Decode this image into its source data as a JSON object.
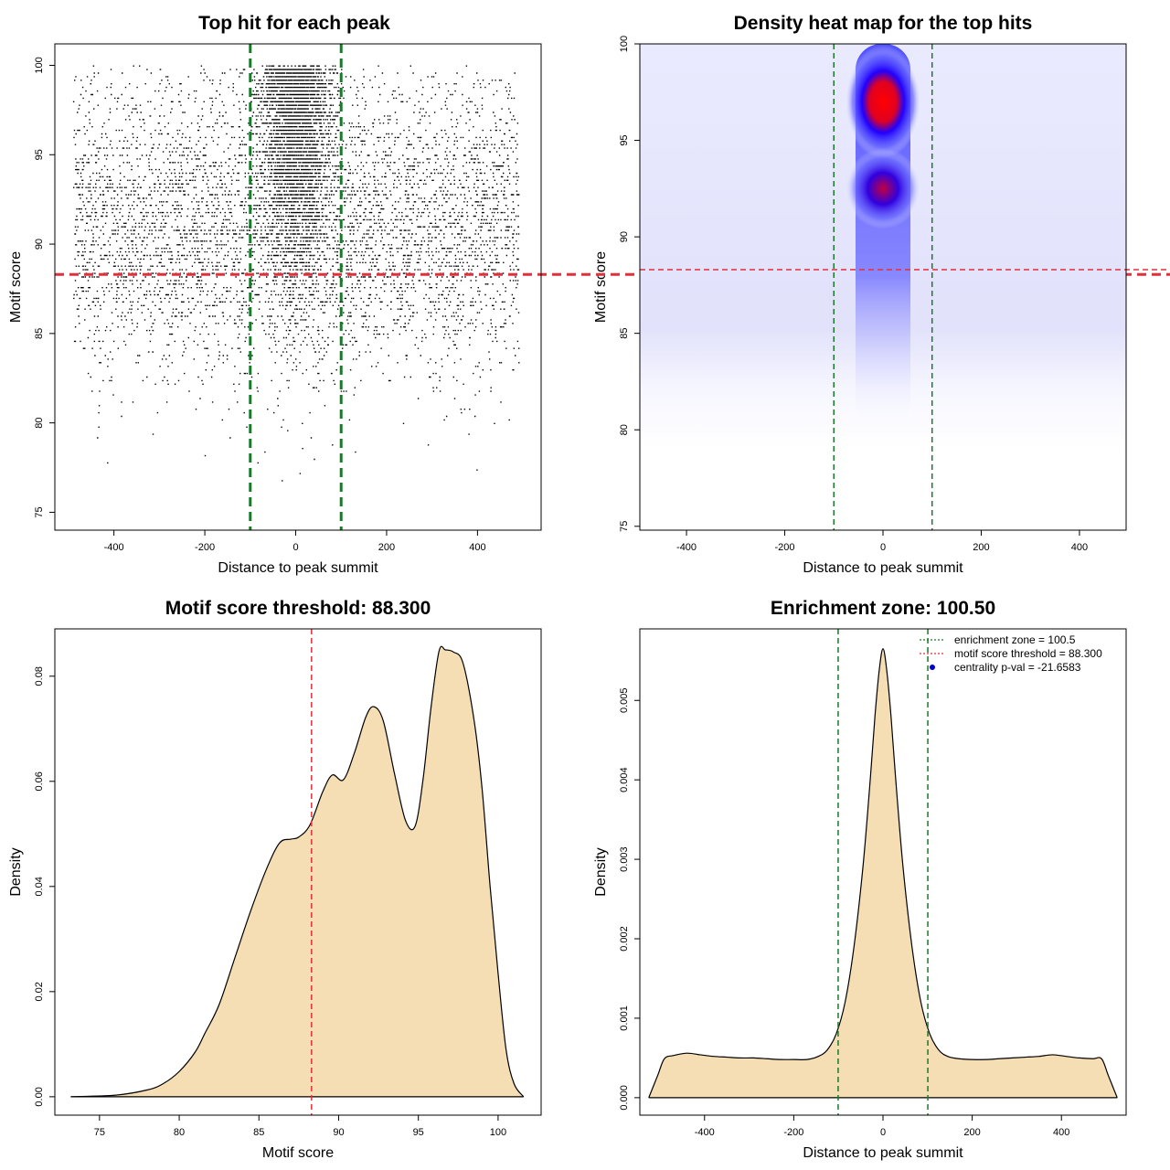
{
  "chart_data": [
    {
      "type": "scatter",
      "title": "Top hit for each peak",
      "xlabel": "Distance to peak summit",
      "ylabel": "Motif score",
      "xlim": [
        -530,
        540
      ],
      "ylim": [
        74,
        101.2
      ],
      "xticks": [
        -400,
        -200,
        0,
        200,
        400
      ],
      "yticks": [
        75,
        80,
        85,
        90,
        95,
        100
      ],
      "vlines": {
        "values": [
          -100,
          100
        ],
        "color": "#1a7a2a"
      },
      "hline": {
        "value": 88.3,
        "color": "#e0303a"
      },
      "point_cloud": {
        "x_range": [
          -490,
          490
        ],
        "y_range": [
          76.5,
          100
        ],
        "central_band": [
          -100,
          100
        ],
        "approx_points": 9000
      }
    },
    {
      "type": "heatmap",
      "title": "Density heat map for the top hits",
      "xlabel": "Distance to peak summit",
      "ylabel": "Motif score",
      "xlim": [
        -495,
        495
      ],
      "ylim": [
        74.8,
        100
      ],
      "xticks": [
        -400,
        -200,
        0,
        200,
        400
      ],
      "yticks": [
        75,
        80,
        85,
        90,
        95,
        100
      ],
      "vlines": {
        "values": [
          -100,
          100
        ],
        "color": "#1a7a2a"
      },
      "hline": {
        "value": 88.3,
        "color": "#e0303a"
      },
      "hotspots": [
        {
          "x": 0,
          "y": 97,
          "intensity": "high"
        },
        {
          "x": 0,
          "y": 92.5,
          "intensity": "medium"
        }
      ],
      "colors": {
        "low": "#ffffff",
        "mid": "#0000ff",
        "high": "#ff0000"
      }
    },
    {
      "type": "area",
      "title": "Motif score threshold: 88.300",
      "xlabel": "Motif score",
      "ylabel": "Density",
      "xlim": [
        72.2,
        102.7
      ],
      "ylim": [
        -0.0035,
        0.089
      ],
      "xticks": [
        75,
        80,
        85,
        90,
        95,
        100
      ],
      "yticks": [
        0.0,
        0.02,
        0.04,
        0.06,
        0.08
      ],
      "ytick_labels": [
        "0.00",
        "0.02",
        "0.04",
        "0.06",
        "0.08"
      ],
      "fill": "#f5deb3",
      "vline": {
        "value": 88.3,
        "color": "#e0303a"
      },
      "x": [
        73.2,
        76,
        78,
        79,
        80,
        81,
        81.6,
        82.5,
        83.5,
        84.5,
        85.5,
        86.3,
        87,
        87.5,
        88.2,
        89,
        89.6,
        90.3,
        91,
        91.7,
        92.2,
        92.8,
        93.5,
        94.2,
        94.8,
        95.3,
        95.8,
        96.3,
        96.7,
        97.2,
        97.8,
        98.5,
        99,
        99.5,
        100,
        100.5,
        101,
        101.6
      ],
      "y": [
        0.0,
        0.0003,
        0.0013,
        0.0025,
        0.0048,
        0.0085,
        0.012,
        0.0175,
        0.0265,
        0.0355,
        0.0435,
        0.0483,
        0.049,
        0.0494,
        0.0517,
        0.058,
        0.0612,
        0.0603,
        0.0655,
        0.0722,
        0.0742,
        0.0715,
        0.0615,
        0.0525,
        0.0515,
        0.0605,
        0.0742,
        0.0848,
        0.085,
        0.0846,
        0.0825,
        0.0715,
        0.0585,
        0.04,
        0.0235,
        0.009,
        0.0025,
        0.0
      ]
    },
    {
      "type": "area",
      "title": "Enrichment zone: 100.50",
      "xlabel": "Distance to peak summit",
      "ylabel": "Density",
      "xlim": [
        -545,
        545
      ],
      "ylim": [
        -0.00022,
        0.0059
      ],
      "xticks": [
        -400,
        -200,
        0,
        200,
        400
      ],
      "yticks": [
        0.0,
        0.001,
        0.002,
        0.003,
        0.004,
        0.005
      ],
      "ytick_labels": [
        "0.000",
        "0.001",
        "0.002",
        "0.003",
        "0.004",
        "0.005"
      ],
      "fill": "#f5deb3",
      "vlines": {
        "values": [
          -100.5,
          100.5
        ],
        "color": "#1a7a2a"
      },
      "x": [
        -525,
        -505,
        -490,
        -470,
        -440,
        -410,
        -380,
        -350,
        -320,
        -290,
        -260,
        -230,
        -200,
        -170,
        -145,
        -125,
        -105,
        -85,
        -65,
        -45,
        -30,
        -18,
        -8,
        0,
        8,
        18,
        30,
        45,
        65,
        85,
        105,
        125,
        145,
        170,
        200,
        230,
        260,
        290,
        320,
        350,
        380,
        410,
        440,
        470,
        490,
        505,
        525
      ],
      "y": [
        0.0,
        0.00028,
        0.00049,
        0.00053,
        0.00056,
        0.00054,
        0.00052,
        0.00051,
        0.0005,
        0.0005,
        0.00049,
        0.00048,
        0.00048,
        0.00048,
        0.00052,
        0.0006,
        0.0008,
        0.0012,
        0.0019,
        0.0029,
        0.0039,
        0.0048,
        0.0054,
        0.00565,
        0.0054,
        0.0048,
        0.0039,
        0.0029,
        0.0019,
        0.0012,
        0.0008,
        0.0006,
        0.00052,
        0.00049,
        0.00048,
        0.00048,
        0.00049,
        0.0005,
        0.00051,
        0.00052,
        0.00054,
        0.00052,
        0.0005,
        0.00049,
        0.00049,
        0.00028,
        0.0
      ],
      "legend": [
        {
          "label": "enrichment zone = 100.5",
          "style": "dotted",
          "color": "#1a7a2a"
        },
        {
          "label": "motif score threshold = 88.300",
          "style": "dotted",
          "color": "#e0303a"
        },
        {
          "label": "centrality p-val = -21.6583",
          "style": "point",
          "color": "#0000cc"
        }
      ],
      "legend_position": "top-right"
    }
  ]
}
